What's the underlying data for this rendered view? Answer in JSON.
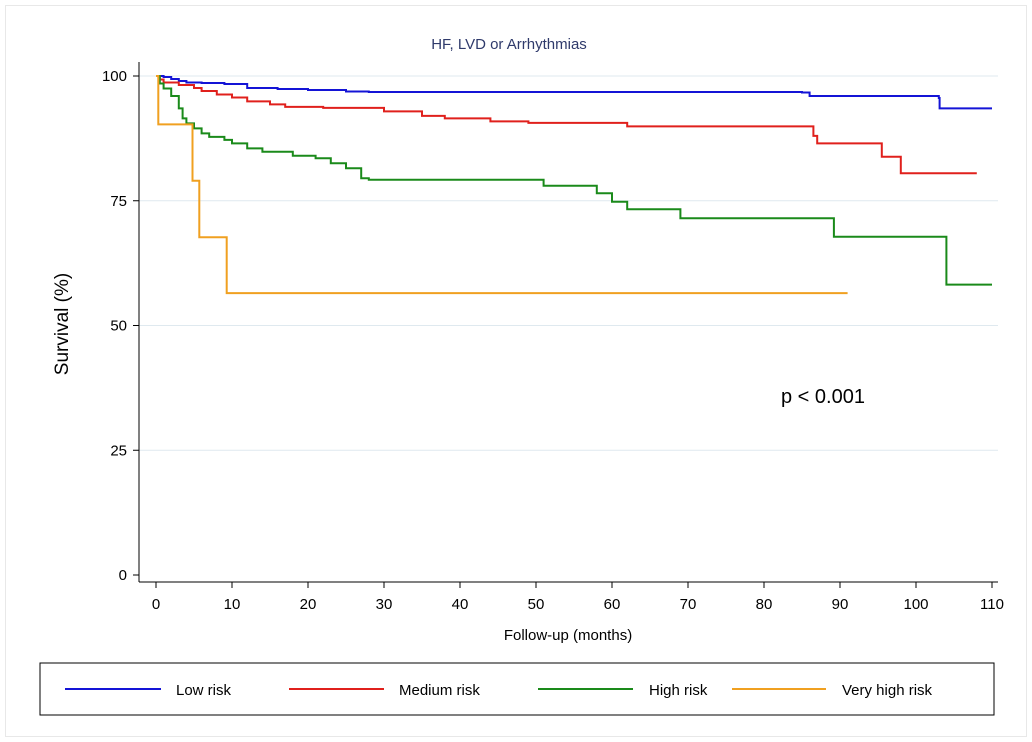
{
  "chart_data": {
    "type": "line",
    "step": true,
    "title": "HF, LVD or Arrhythmias",
    "xlabel": "Follow-up (months)",
    "ylabel": "Survival (%)",
    "xlim": [
      0,
      110
    ],
    "ylim": [
      0,
      100
    ],
    "xticks": [
      0,
      10,
      20,
      30,
      40,
      50,
      60,
      70,
      80,
      90,
      100,
      110
    ],
    "yticks": [
      0,
      25,
      50,
      75,
      100
    ],
    "grid": "horizontal",
    "legend_position": "bottom",
    "annotation": "p < 0.001",
    "series": [
      {
        "name": "Low risk",
        "color": "#1414d6",
        "points": [
          [
            0,
            100
          ],
          [
            1,
            99.8
          ],
          [
            2,
            99.4
          ],
          [
            3,
            99.0
          ],
          [
            4,
            98.7
          ],
          [
            6,
            98.6
          ],
          [
            9,
            98.4
          ],
          [
            12,
            97.6
          ],
          [
            16,
            97.4
          ],
          [
            20,
            97.2
          ],
          [
            25,
            96.9
          ],
          [
            28,
            96.8
          ],
          [
            85,
            96.7
          ],
          [
            86,
            96.0
          ],
          [
            103,
            95.6
          ],
          [
            103.1,
            93.5
          ],
          [
            110,
            93.5
          ]
        ]
      },
      {
        "name": "Medium risk",
        "color": "#e0201c",
        "points": [
          [
            0,
            100
          ],
          [
            0.5,
            99.3
          ],
          [
            1,
            98.7
          ],
          [
            3,
            98.2
          ],
          [
            5,
            97.6
          ],
          [
            6,
            97.0
          ],
          [
            8,
            96.3
          ],
          [
            10,
            95.7
          ],
          [
            12,
            94.9
          ],
          [
            15,
            94.3
          ],
          [
            17,
            93.8
          ],
          [
            22,
            93.6
          ],
          [
            30,
            92.9
          ],
          [
            35,
            92.0
          ],
          [
            38,
            91.5
          ],
          [
            44,
            90.9
          ],
          [
            49,
            90.6
          ],
          [
            62,
            89.9
          ],
          [
            85,
            89.9
          ],
          [
            86.5,
            88.0
          ],
          [
            87,
            86.5
          ],
          [
            95.5,
            83.8
          ],
          [
            98,
            80.5
          ],
          [
            108,
            80.5
          ]
        ]
      },
      {
        "name": "High risk",
        "color": "#1a8a1a",
        "points": [
          [
            0,
            100
          ],
          [
            0.5,
            98.5
          ],
          [
            1,
            97.5
          ],
          [
            2,
            96.0
          ],
          [
            3,
            93.5
          ],
          [
            3.5,
            91.5
          ],
          [
            4,
            90.5
          ],
          [
            5,
            89.5
          ],
          [
            6,
            88.5
          ],
          [
            7,
            87.8
          ],
          [
            9,
            87.2
          ],
          [
            10,
            86.5
          ],
          [
            12,
            85.5
          ],
          [
            14,
            84.8
          ],
          [
            18,
            84.0
          ],
          [
            21,
            83.5
          ],
          [
            23,
            82.5
          ],
          [
            25,
            81.5
          ],
          [
            27,
            79.5
          ],
          [
            28,
            79.2
          ],
          [
            50,
            79.2
          ],
          [
            51,
            78.0
          ],
          [
            58,
            76.5
          ],
          [
            60,
            74.8
          ],
          [
            62,
            73.3
          ],
          [
            69,
            71.5
          ],
          [
            89,
            71.5
          ],
          [
            89.2,
            67.8
          ],
          [
            103.5,
            67.8
          ],
          [
            104,
            58.2
          ],
          [
            110,
            58.2
          ]
        ]
      },
      {
        "name": "Very high risk",
        "color": "#f0a020",
        "points": [
          [
            0,
            100
          ],
          [
            0.3,
            90.3
          ],
          [
            4.5,
            90.3
          ],
          [
            4.8,
            79.0
          ],
          [
            5.7,
            67.7
          ],
          [
            9.3,
            56.5
          ],
          [
            91,
            56.5
          ]
        ]
      }
    ]
  }
}
